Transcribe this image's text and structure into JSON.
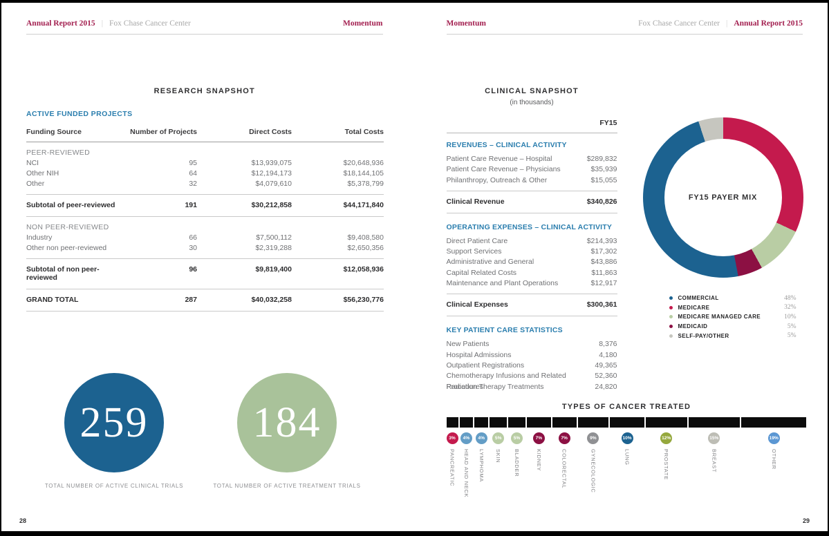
{
  "left_page": {
    "header": {
      "title": "Annual Report 2015",
      "subtitle": "Fox Chase Cancer Center",
      "edition": "Momentum"
    },
    "page_number": "28",
    "section_title": "RESEARCH SNAPSHOT",
    "table": {
      "title": "ACTIVE FUNDED PROJECTS",
      "columns": [
        "Funding Source",
        "Number of Projects",
        "Direct Costs",
        "Total Costs"
      ],
      "group1_label": "PEER-REVIEWED",
      "group1_rows": [
        [
          "NCI",
          "95",
          "$13,939,075",
          "$20,648,936"
        ],
        [
          "Other NIH",
          "64",
          "$12,194,173",
          "$18,144,105"
        ],
        [
          "Other",
          "32",
          "$4,079,610",
          "$5,378,799"
        ]
      ],
      "group1_subtotal": [
        "Subtotal of peer-reviewed",
        "191",
        "$30,212,858",
        "$44,171,840"
      ],
      "group2_label": "NON PEER-REVIEWED",
      "group2_rows": [
        [
          "Industry",
          "66",
          "$7,500,112",
          "$9,408,580"
        ],
        [
          "Other non peer-reviewed",
          "30",
          "$2,319,288",
          "$2,650,356"
        ]
      ],
      "group2_subtotal": [
        "Subtotal of non peer-reviewed",
        "96",
        "$9,819,400",
        "$12,058,936"
      ],
      "grand_total": [
        "GRAND TOTAL",
        "287",
        "$40,032,258",
        "$56,230,776"
      ]
    },
    "badges": [
      {
        "value": "259",
        "caption": "TOTAL NUMBER OF ACTIVE CLINICAL TRIALS",
        "color": "#1c6290"
      },
      {
        "value": "184",
        "caption": "TOTAL NUMBER OF ACTIVE TREATMENT TRIALS",
        "color": "#a9c29a"
      }
    ]
  },
  "right_page": {
    "header": {
      "edition": "Momentum",
      "subtitle": "Fox Chase Cancer Center",
      "title": "Annual Report 2015"
    },
    "page_number": "29",
    "section_title": "CLINICAL SNAPSHOT",
    "section_subtitle": "(in thousands)",
    "fy_label": "FY15",
    "revenues": {
      "heading": "REVENUES – CLINICAL ACTIVITY",
      "rows": [
        {
          "label": "Patient Care Revenue – Hospital",
          "value": "$289,832"
        },
        {
          "label": "Patient Care Revenue – Physicians",
          "value": "$35,939"
        },
        {
          "label": "Philanthropy, Outreach & Other",
          "value": "$15,055"
        }
      ],
      "total_label": "Clinical Revenue",
      "total_value": "$340,826"
    },
    "expenses": {
      "heading": "OPERATING EXPENSES – CLINICAL ACTIVITY",
      "rows": [
        {
          "label": "Direct Patient Care",
          "value": "$214,393"
        },
        {
          "label": "Support Services",
          "value": "$17,302"
        },
        {
          "label": "Administrative and General",
          "value": "$43,886"
        },
        {
          "label": "Capital Related Costs",
          "value": "$11,863"
        },
        {
          "label": "Maintenance and Plant Operations",
          "value": "$12,917"
        }
      ],
      "total_label": "Clinical Expenses",
      "total_value": "$300,361"
    },
    "statistics": {
      "heading": "KEY PATIENT CARE STATISTICS",
      "rows": [
        {
          "label": "New Patients",
          "value": "8,376"
        },
        {
          "label": "Hospital Admissions",
          "value": "4,180"
        },
        {
          "label": "Outpatient Registrations",
          "value": "49,365"
        },
        {
          "label": "Chemotherapy Infusions and Related Procedures",
          "value": "52,360"
        },
        {
          "label": "Radiation Therapy Treatments",
          "value": "24,820"
        }
      ]
    }
  },
  "chart_data": [
    {
      "type": "pie",
      "donut": true,
      "title": "FY15 PAYER MIX",
      "labels": [
        "COMMERCIAL",
        "MEDICARE",
        "MEDICARE MANAGED CARE",
        "MEDICAID",
        "SELF-PAY/OTHER"
      ],
      "values": [
        48,
        32,
        10,
        5,
        5
      ],
      "value_labels": [
        "48%",
        "32%",
        "10%",
        "5%",
        "5%"
      ],
      "colors": [
        "#1c6290",
        "#c41a4d",
        "#b9cda4",
        "#8c1043",
        "#c6c6bf"
      ],
      "clockwise_from_top": [
        1,
        2,
        3,
        0,
        4
      ],
      "legend_position": "below-right"
    },
    {
      "type": "bar",
      "title": "TYPES OF CANCER TREATED",
      "categories": [
        "PANCREATIC",
        "HEAD AND NECK",
        "LYMPHOMA",
        "SKIN",
        "BLADDER",
        "KIDNEY",
        "COLORECTAL",
        "GYNECOLOGIC",
        "LUNG",
        "PROSTATE",
        "BREAST",
        "OTHER"
      ],
      "values": [
        3,
        4,
        4,
        5,
        5,
        7,
        7,
        9,
        10,
        12,
        15,
        19
      ],
      "value_labels": [
        "3%",
        "4%",
        "4%",
        "5%",
        "5%",
        "7%",
        "7%",
        "9%",
        "10%",
        "12%",
        "15%",
        "19%"
      ],
      "badge_colors": [
        "#c41a4d",
        "#639dc6",
        "#639dc6",
        "#b9cda4",
        "#b9cda4",
        "#8c1043",
        "#8c1043",
        "#8f9093",
        "#1c6290",
        "#95a83d",
        "#bdbdb5",
        "#5b97d3"
      ],
      "bar_color": "#0c0c0c",
      "xlabel": "",
      "ylabel": ""
    }
  ]
}
